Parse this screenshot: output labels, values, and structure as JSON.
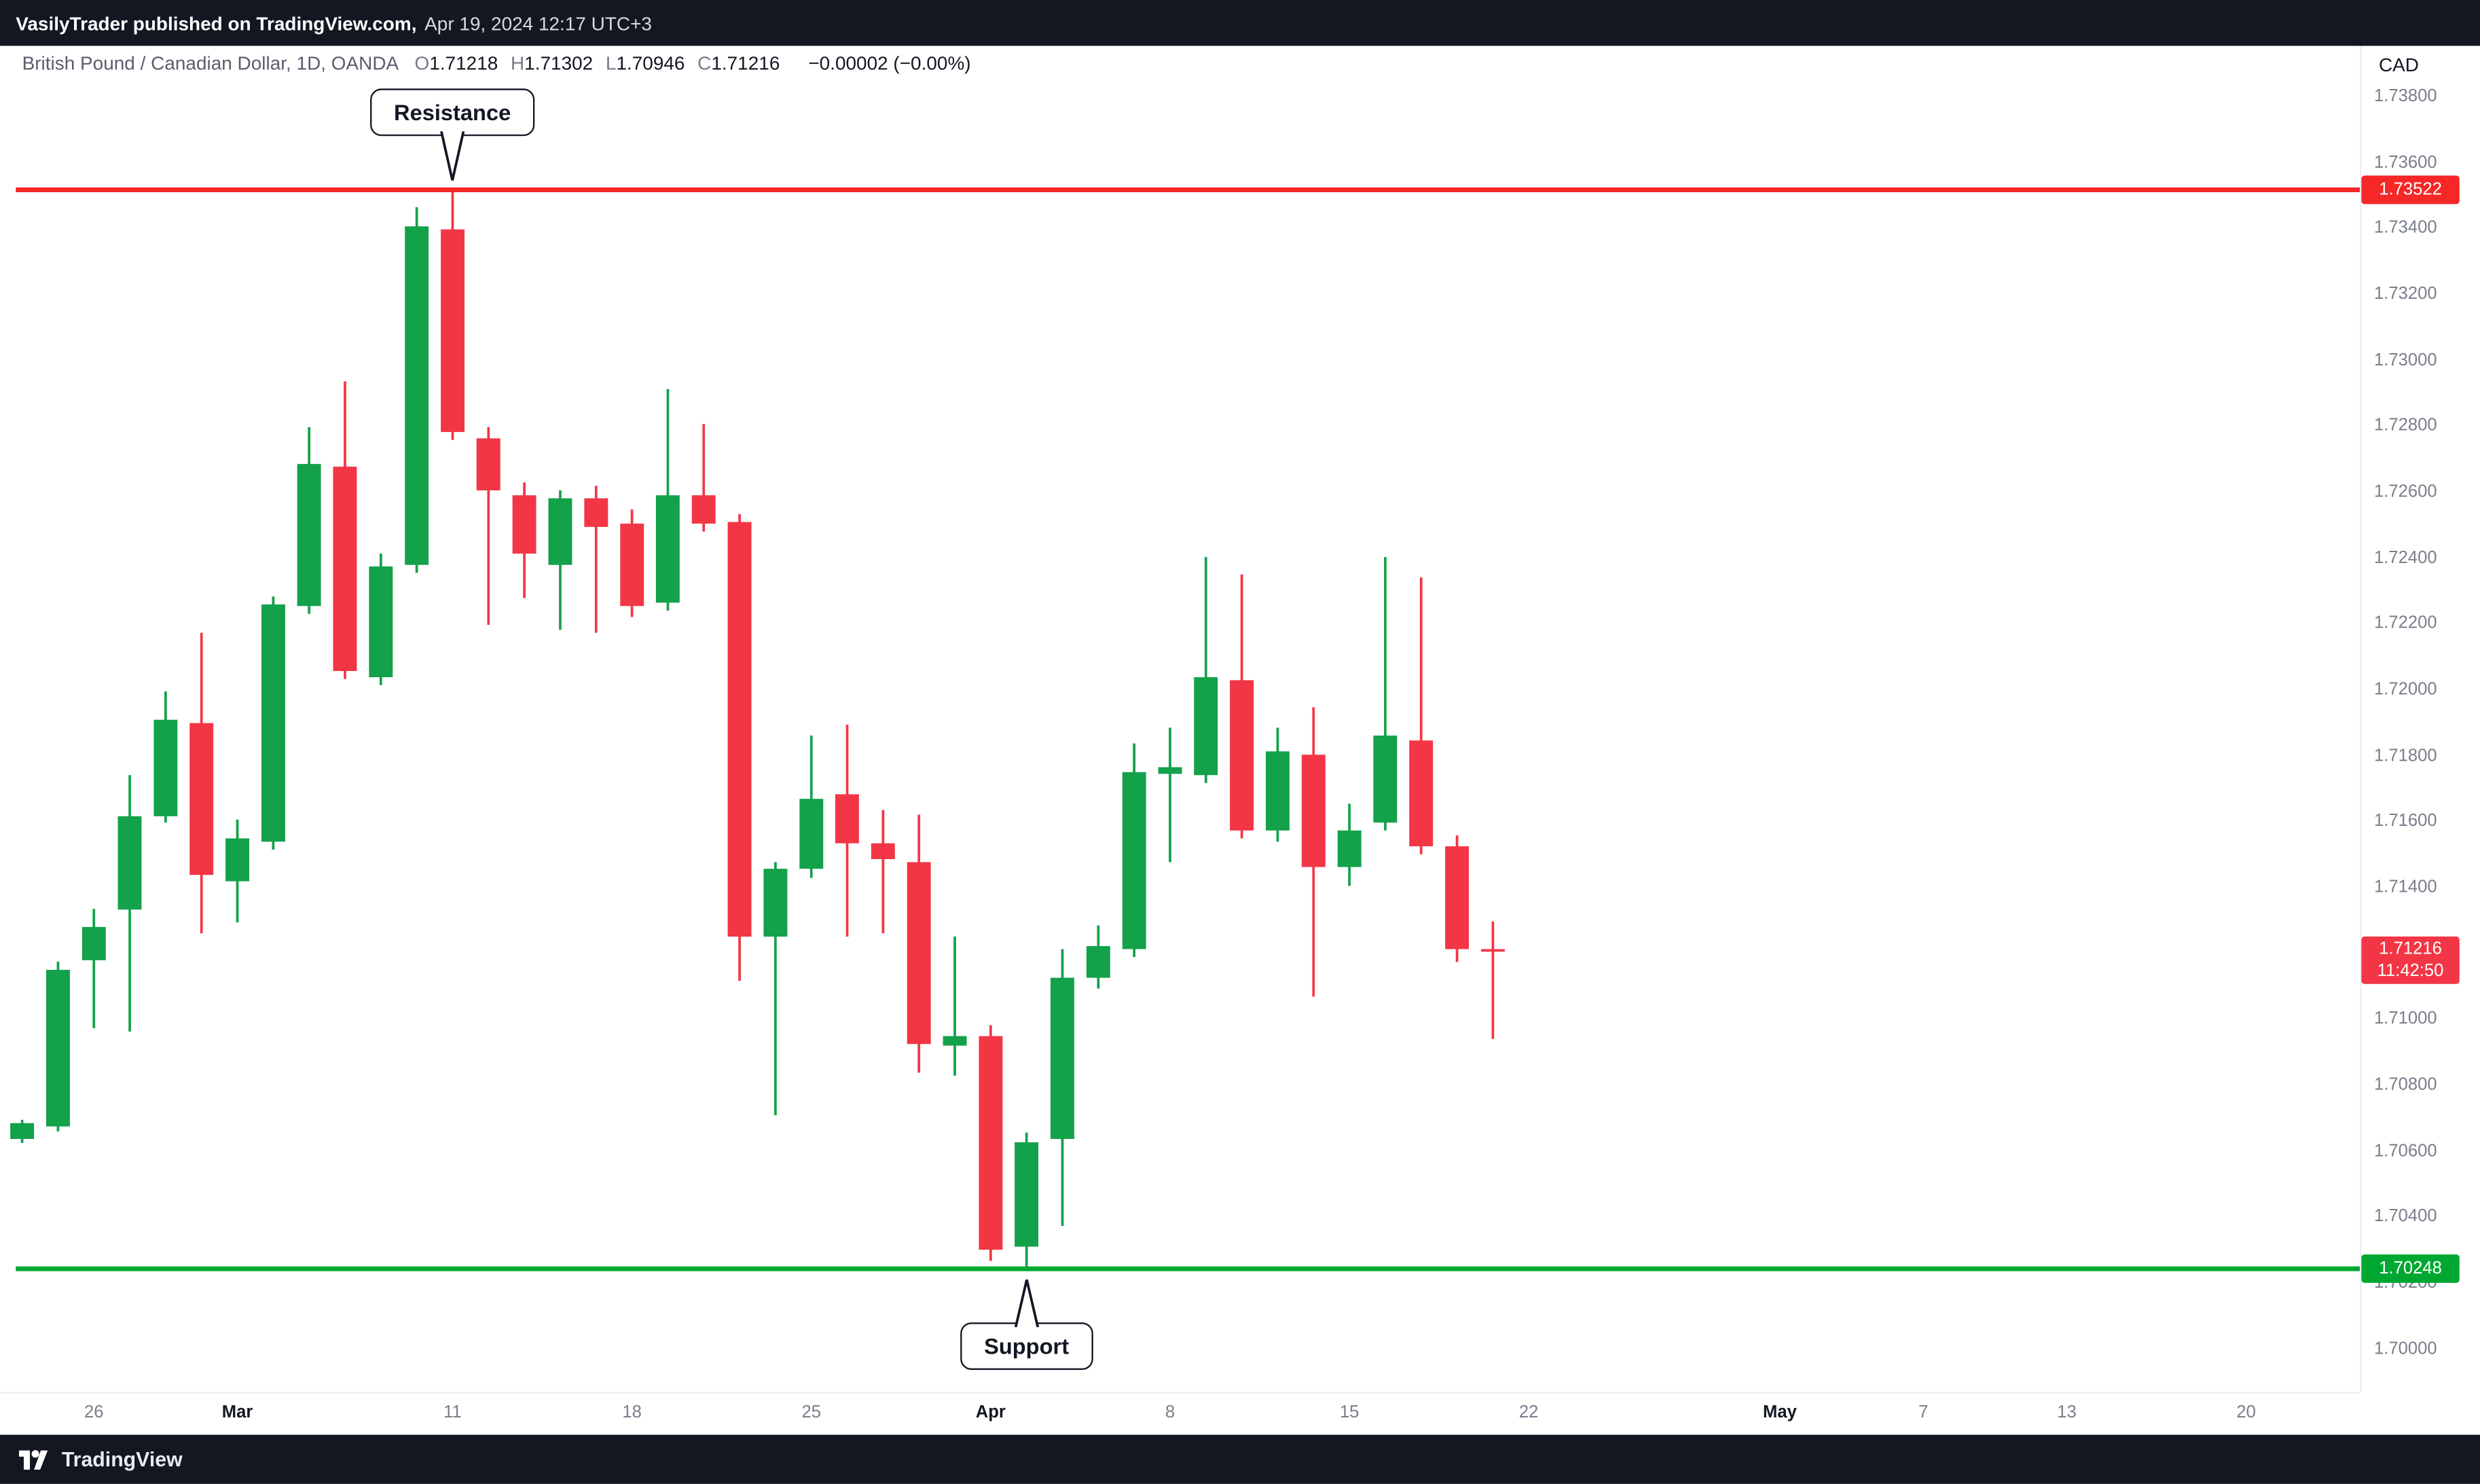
{
  "banner": {
    "publisher": "VasilyTrader published on TradingView.com,",
    "timestamp": "Apr 19, 2024 12:17 UTC+3"
  },
  "symbol_bar": {
    "title": "British Pound / Canadian Dollar, 1D, OANDA",
    "ohlc": [
      {
        "label": "O",
        "value": "1.71218"
      },
      {
        "label": "H",
        "value": "1.71302"
      },
      {
        "label": "L",
        "value": "1.70946"
      },
      {
        "label": "C",
        "value": "1.71216"
      }
    ],
    "change": "−0.00002 (−0.00%)"
  },
  "axis": {
    "currency": "CAD"
  },
  "annotations": {
    "resistance_label": "Resistance",
    "support_label": "Support",
    "resistance_price_tag": "1.73522",
    "support_price_tag": "1.70248",
    "last_price_tag": "1.71216",
    "countdown": "11:42:50"
  },
  "footer": {
    "brand": "TradingView"
  },
  "colors": {
    "up": "#13a14a",
    "down": "#f23645",
    "resistance_line": "#f52727",
    "support_line": "#00a832",
    "last_price_bg": "#f23645",
    "dark_bar": "#131722",
    "axis_text": "#7a7e8b"
  },
  "chart_data": {
    "type": "candlestick",
    "title": "British Pound / Canadian Dollar, 1D, OANDA",
    "symbol": "GBPCAD",
    "timeframe": "1D",
    "exchange": "OANDA",
    "grid": false,
    "legend_position": "none",
    "ylim": [
      1.69874,
      1.73834
    ],
    "y_ticks": [
      "1.73800",
      "1.73600",
      "1.73400",
      "1.73200",
      "1.73000",
      "1.72800",
      "1.72600",
      "1.72400",
      "1.72200",
      "1.72000",
      "1.71800",
      "1.71600",
      "1.71400",
      "1.71200",
      "1.71000",
      "1.70800",
      "1.70600",
      "1.70400",
      "1.70200",
      "1.70000"
    ],
    "x_ticks": [
      {
        "label": "26",
        "i": 2
      },
      {
        "label": "Mar",
        "i": 6,
        "month": true
      },
      {
        "label": "11",
        "i": 12
      },
      {
        "label": "18",
        "i": 17
      },
      {
        "label": "25",
        "i": 22
      },
      {
        "label": "Apr",
        "i": 27,
        "month": true
      },
      {
        "label": "8",
        "i": 32
      },
      {
        "label": "15",
        "i": 37
      },
      {
        "label": "22",
        "i": 42
      },
      {
        "label": "May",
        "i": 49,
        "month": true
      },
      {
        "label": "7",
        "i": 53
      },
      {
        "label": "13",
        "i": 57
      },
      {
        "label": "20",
        "i": 62
      }
    ],
    "levels": [
      {
        "name": "resistance",
        "price": 1.73522
      },
      {
        "name": "support",
        "price": 1.70248
      }
    ],
    "last": {
      "price": 1.71216,
      "countdown": "11:42:50"
    },
    "candles": [
      {
        "date": "2024-02-22",
        "o": 1.70642,
        "h": 1.707,
        "l": 1.7063,
        "c": 1.7069
      },
      {
        "date": "2024-02-23",
        "o": 1.7068,
        "h": 1.7118,
        "l": 1.70665,
        "c": 1.71155
      },
      {
        "date": "2024-02-26",
        "o": 1.71184,
        "h": 1.7134,
        "l": 1.70978,
        "c": 1.71285
      },
      {
        "date": "2024-02-27",
        "o": 1.71338,
        "h": 1.71746,
        "l": 1.70968,
        "c": 1.71621
      },
      {
        "date": "2024-02-28",
        "o": 1.71621,
        "h": 1.72,
        "l": 1.71602,
        "c": 1.71914
      },
      {
        "date": "2024-02-29",
        "o": 1.71904,
        "h": 1.72178,
        "l": 1.71266,
        "c": 1.71443
      },
      {
        "date": "2024-03-01",
        "o": 1.71424,
        "h": 1.71611,
        "l": 1.71299,
        "c": 1.71554
      },
      {
        "date": "2024-03-04",
        "o": 1.71544,
        "h": 1.72288,
        "l": 1.7152,
        "c": 1.72264
      },
      {
        "date": "2024-03-05",
        "o": 1.72259,
        "h": 1.72802,
        "l": 1.72235,
        "c": 1.7269
      },
      {
        "date": "2024-03-06",
        "o": 1.72682,
        "h": 1.72941,
        "l": 1.72038,
        "c": 1.72062
      },
      {
        "date": "2024-03-07",
        "o": 1.72043,
        "h": 1.72418,
        "l": 1.72019,
        "c": 1.72379
      },
      {
        "date": "2024-03-08",
        "o": 1.72384,
        "h": 1.73469,
        "l": 1.7236,
        "c": 1.73411
      },
      {
        "date": "2024-03-11",
        "o": 1.73402,
        "h": 1.73522,
        "l": 1.72763,
        "c": 1.72787
      },
      {
        "date": "2024-03-12",
        "o": 1.72768,
        "h": 1.72802,
        "l": 1.72202,
        "c": 1.7261
      },
      {
        "date": "2024-03-13",
        "o": 1.72595,
        "h": 1.72634,
        "l": 1.72283,
        "c": 1.72418
      },
      {
        "date": "2024-03-14",
        "o": 1.72384,
        "h": 1.7261,
        "l": 1.72187,
        "c": 1.72586
      },
      {
        "date": "2024-03-15",
        "o": 1.72586,
        "h": 1.72624,
        "l": 1.72178,
        "c": 1.72499
      },
      {
        "date": "2024-03-18",
        "o": 1.72509,
        "h": 1.72552,
        "l": 1.72226,
        "c": 1.72259
      },
      {
        "date": "2024-03-19",
        "o": 1.72269,
        "h": 1.72917,
        "l": 1.72245,
        "c": 1.72595
      },
      {
        "date": "2024-03-20",
        "o": 1.72595,
        "h": 1.72811,
        "l": 1.72485,
        "c": 1.72509
      },
      {
        "date": "2024-03-21",
        "o": 1.72514,
        "h": 1.72538,
        "l": 1.71122,
        "c": 1.71256
      },
      {
        "date": "2024-03-22",
        "o": 1.71256,
        "h": 1.71482,
        "l": 1.70714,
        "c": 1.71462
      },
      {
        "date": "2024-03-25",
        "o": 1.71462,
        "h": 1.71866,
        "l": 1.71434,
        "c": 1.71674
      },
      {
        "date": "2024-03-26",
        "o": 1.71688,
        "h": 1.71899,
        "l": 1.71256,
        "c": 1.71539
      },
      {
        "date": "2024-03-27",
        "o": 1.71539,
        "h": 1.7164,
        "l": 1.71266,
        "c": 1.71491
      },
      {
        "date": "2024-03-28",
        "o": 1.71482,
        "h": 1.71626,
        "l": 1.70843,
        "c": 1.7093
      },
      {
        "date": "2024-03-29",
        "o": 1.70925,
        "h": 1.71256,
        "l": 1.70834,
        "c": 1.70954
      },
      {
        "date": "2024-04-01",
        "o": 1.70954,
        "h": 1.70987,
        "l": 1.70272,
        "c": 1.70306
      },
      {
        "date": "2024-04-02",
        "o": 1.70315,
        "h": 1.70661,
        "l": 1.70248,
        "c": 1.70632
      },
      {
        "date": "2024-04-03",
        "o": 1.70642,
        "h": 1.71218,
        "l": 1.70378,
        "c": 1.71131
      },
      {
        "date": "2024-04-04",
        "o": 1.71131,
        "h": 1.7129,
        "l": 1.71098,
        "c": 1.71227
      },
      {
        "date": "2024-04-05",
        "o": 1.71218,
        "h": 1.71842,
        "l": 1.71194,
        "c": 1.71755
      },
      {
        "date": "2024-04-08",
        "o": 1.7175,
        "h": 1.7189,
        "l": 1.71482,
        "c": 1.7177
      },
      {
        "date": "2024-04-09",
        "o": 1.71746,
        "h": 1.72408,
        "l": 1.71722,
        "c": 1.72043
      },
      {
        "date": "2024-04-10",
        "o": 1.72034,
        "h": 1.72355,
        "l": 1.71554,
        "c": 1.71578
      },
      {
        "date": "2024-04-11",
        "o": 1.71578,
        "h": 1.7189,
        "l": 1.71544,
        "c": 1.71818
      },
      {
        "date": "2024-04-12",
        "o": 1.71808,
        "h": 1.71952,
        "l": 1.71074,
        "c": 1.71467
      },
      {
        "date": "2024-04-15",
        "o": 1.71467,
        "h": 1.71659,
        "l": 1.7141,
        "c": 1.71578
      },
      {
        "date": "2024-04-16",
        "o": 1.71602,
        "h": 1.72408,
        "l": 1.71578,
        "c": 1.71866
      },
      {
        "date": "2024-04-17",
        "o": 1.71851,
        "h": 1.72346,
        "l": 1.71506,
        "c": 1.7153
      },
      {
        "date": "2024-04-18",
        "o": 1.7153,
        "h": 1.71563,
        "l": 1.71179,
        "c": 1.71218
      },
      {
        "date": "2024-04-19",
        "o": 1.71218,
        "h": 1.71302,
        "l": 1.70946,
        "c": 1.71216
      }
    ]
  }
}
